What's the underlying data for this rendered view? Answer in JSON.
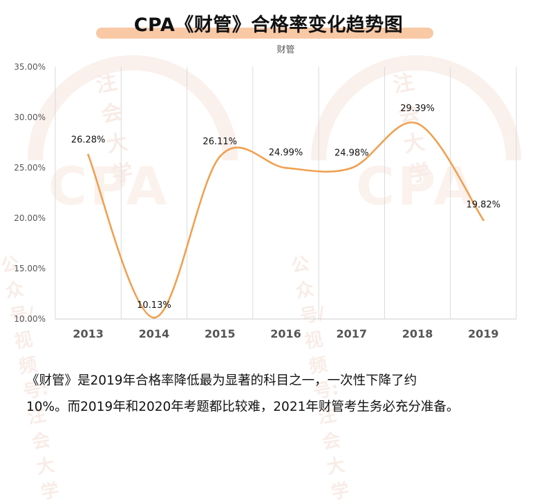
{
  "chart_data": {
    "type": "line",
    "title": "CPA《财管》合格率变化趋势图",
    "subtitle": "财管",
    "categories": [
      "2013",
      "2014",
      "2015",
      "2016",
      "2017",
      "2018",
      "2019"
    ],
    "values": [
      26.28,
      10.13,
      26.11,
      24.99,
      24.98,
      29.39,
      19.82
    ],
    "value_labels": [
      "26.28%",
      "10.13%",
      "26.11%",
      "24.99%",
      "24.98%",
      "29.39%",
      "19.82%"
    ],
    "ylim": [
      10,
      35
    ],
    "yticks": [
      "10.00%",
      "15.00%",
      "20.00%",
      "25.00%",
      "30.00%",
      "35.00%"
    ],
    "ytick_values": [
      10,
      15,
      20,
      25,
      30,
      35
    ],
    "xlabel": "",
    "ylabel": "",
    "grid": true,
    "line_color": "#f0a050"
  },
  "caption": {
    "line1": "《财管》是2019年合格率降低最为显著的科目之一，一次性下降了约",
    "line2": "10%。而2019年和2020年考题都比较难，2021年财管考生务必充分准备。"
  },
  "watermark": {
    "arc_text": "注会大学",
    "logo": "CPA",
    "footer": "公众号/视频号:注会大学"
  }
}
